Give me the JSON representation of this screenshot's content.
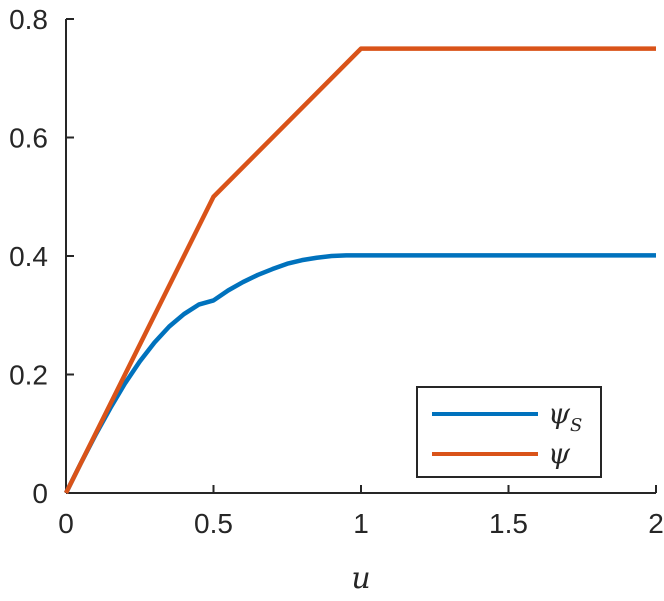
{
  "chart_data": {
    "type": "line",
    "title": "",
    "xlabel": "u",
    "ylabel": "",
    "xlim": [
      0,
      2
    ],
    "ylim": [
      0,
      0.8
    ],
    "xticks": [
      0,
      0.5,
      1,
      1.5,
      2
    ],
    "xtick_labels": [
      "0",
      "0.5",
      "1",
      "1.5",
      "2"
    ],
    "yticks": [
      0,
      0.2,
      0.4,
      0.6,
      0.8
    ],
    "ytick_labels": [
      "0",
      "0.2",
      "0.4",
      "0.6",
      "0.8"
    ],
    "grid": false,
    "legend_position": "bottom-right",
    "series": [
      {
        "name": "ψS",
        "name_main": "ψ",
        "name_sub": "S",
        "color": "#0072BD",
        "x": [
          0,
          0.05,
          0.1,
          0.15,
          0.2,
          0.25,
          0.3,
          0.35,
          0.4,
          0.45,
          0.5,
          0.55,
          0.6,
          0.65,
          0.7,
          0.75,
          0.8,
          0.85,
          0.9,
          0.95,
          1.0,
          1.5,
          2.0
        ],
        "y": [
          0,
          0.05,
          0.098,
          0.143,
          0.185,
          0.222,
          0.254,
          0.281,
          0.302,
          0.318,
          0.325,
          0.342,
          0.356,
          0.368,
          0.378,
          0.387,
          0.393,
          0.397,
          0.4,
          0.401,
          0.401,
          0.401,
          0.401
        ]
      },
      {
        "name": "ψ",
        "name_main": "ψ",
        "name_sub": "",
        "color": "#D95319",
        "x": [
          0,
          0.5,
          1.0,
          2.0
        ],
        "y": [
          0,
          0.5,
          0.75,
          0.75
        ]
      }
    ]
  }
}
